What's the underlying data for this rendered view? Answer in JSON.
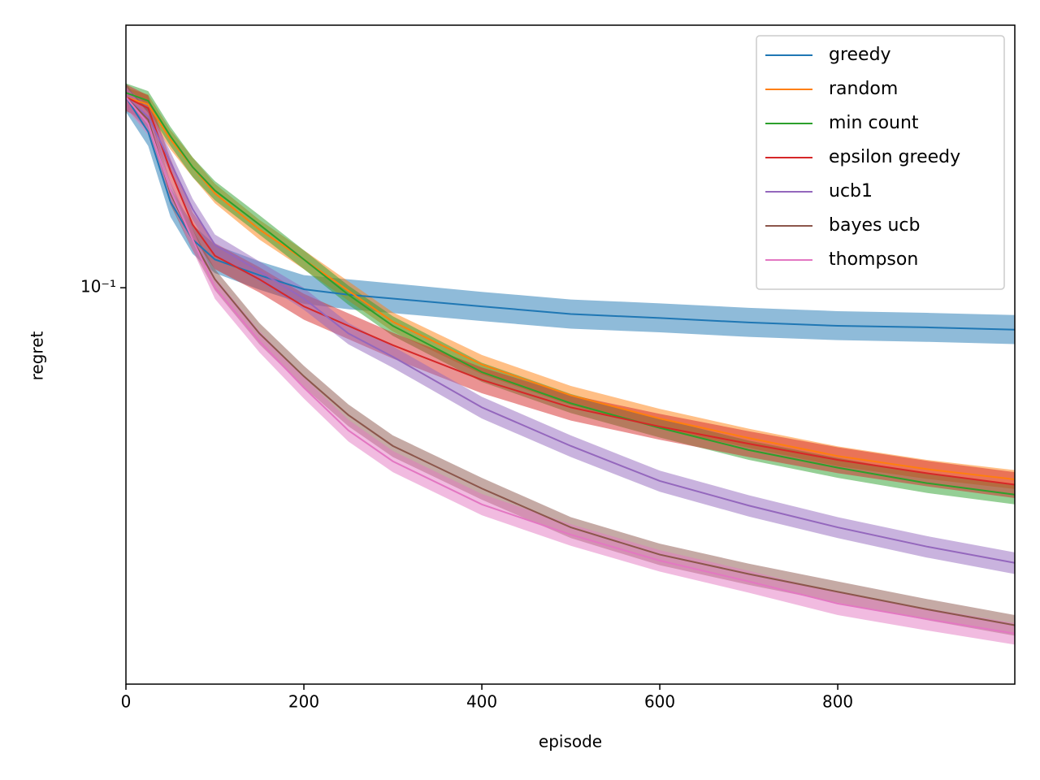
{
  "chart_data": {
    "type": "line",
    "xlabel": "episode",
    "ylabel": "regret",
    "log_y": true,
    "legend": "upper right",
    "xlim": [
      0,
      999
    ],
    "xticks": [
      0,
      200,
      400,
      600,
      800
    ],
    "ylim": [
      0.0159,
      0.338
    ],
    "yticks": [
      {
        "value": 0.1,
        "label": "10⁻¹"
      }
    ],
    "x": [
      0,
      25,
      50,
      75,
      100,
      150,
      200,
      250,
      300,
      400,
      500,
      600,
      700,
      800,
      900,
      999
    ],
    "series": [
      {
        "name": "greedy",
        "color": "#1f77b4",
        "values": [
          0.242,
          0.206,
          0.149,
          0.125,
          0.114,
          0.106,
          0.0993,
          0.0968,
          0.0951,
          0.0917,
          0.0885,
          0.0869,
          0.0851,
          0.0838,
          0.0832,
          0.0823
        ],
        "lower": [
          0.226,
          0.193,
          0.139,
          0.117,
          0.107,
          0.0991,
          0.0928,
          0.0905,
          0.0889,
          0.0857,
          0.0827,
          0.0813,
          0.0796,
          0.0784,
          0.0778,
          0.077
        ],
        "upper": [
          0.259,
          0.22,
          0.159,
          0.134,
          0.122,
          0.113,
          0.106,
          0.104,
          0.102,
          0.0981,
          0.0947,
          0.093,
          0.0911,
          0.0897,
          0.089,
          0.0881
        ]
      },
      {
        "name": "random",
        "color": "#ff7f0e",
        "values": [
          0.242,
          0.234,
          0.199,
          0.175,
          0.155,
          0.131,
          0.114,
          0.0986,
          0.0854,
          0.07,
          0.0607,
          0.0545,
          0.0498,
          0.0458,
          0.0431,
          0.0411
        ],
        "lower": [
          0.231,
          0.223,
          0.19,
          0.167,
          0.148,
          0.125,
          0.109,
          0.0942,
          0.0816,
          0.0669,
          0.058,
          0.052,
          0.0476,
          0.0437,
          0.0412,
          0.0393
        ],
        "upper": [
          0.253,
          0.245,
          0.208,
          0.183,
          0.162,
          0.137,
          0.119,
          0.103,
          0.0892,
          0.0732,
          0.0634,
          0.057,
          0.052,
          0.0479,
          0.045,
          0.0429
        ]
      },
      {
        "name": "min count",
        "color": "#2ca02c",
        "values": [
          0.247,
          0.238,
          0.202,
          0.175,
          0.157,
          0.134,
          0.114,
          0.0968,
          0.0838,
          0.0676,
          0.0585,
          0.0522,
          0.0471,
          0.0434,
          0.0404,
          0.0383
        ],
        "lower": [
          0.236,
          0.227,
          0.193,
          0.167,
          0.15,
          0.128,
          0.109,
          0.0924,
          0.08,
          0.0646,
          0.0559,
          0.0499,
          0.045,
          0.0414,
          0.0386,
          0.0366
        ],
        "upper": [
          0.258,
          0.249,
          0.211,
          0.183,
          0.164,
          0.14,
          0.119,
          0.101,
          0.0876,
          0.0706,
          0.0611,
          0.0545,
          0.0492,
          0.0454,
          0.0422,
          0.04
        ]
      },
      {
        "name": "epsilon greedy",
        "color": "#d62728",
        "values": [
          0.242,
          0.23,
          0.172,
          0.134,
          0.116,
          0.104,
          0.0917,
          0.0838,
          0.0766,
          0.0652,
          0.0574,
          0.0525,
          0.0485,
          0.045,
          0.0423,
          0.0401
        ],
        "lower": [
          0.227,
          0.216,
          0.162,
          0.126,
          0.109,
          0.0978,
          0.0862,
          0.0788,
          0.072,
          0.0613,
          0.054,
          0.0494,
          0.0456,
          0.0423,
          0.0398,
          0.0377
        ],
        "upper": [
          0.257,
          0.244,
          0.182,
          0.142,
          0.123,
          0.11,
          0.0972,
          0.0888,
          0.0812,
          0.0691,
          0.0608,
          0.0557,
          0.0514,
          0.0477,
          0.0448,
          0.0425
        ]
      },
      {
        "name": "ucb1",
        "color": "#9467bd",
        "values": [
          0.242,
          0.221,
          0.179,
          0.144,
          0.122,
          0.108,
          0.0951,
          0.0809,
          0.0726,
          0.0574,
          0.048,
          0.0408,
          0.0364,
          0.0329,
          0.0301,
          0.0279
        ],
        "lower": [
          0.23,
          0.21,
          0.17,
          0.137,
          0.116,
          0.103,
          0.0903,
          0.0769,
          0.069,
          0.0545,
          0.0456,
          0.0388,
          0.0346,
          0.0313,
          0.0286,
          0.0265
        ],
        "upper": [
          0.254,
          0.232,
          0.188,
          0.151,
          0.128,
          0.113,
          0.0999,
          0.0849,
          0.0762,
          0.0603,
          0.0504,
          0.0428,
          0.0382,
          0.0345,
          0.0316,
          0.0293
        ]
      },
      {
        "name": "bayes ucb",
        "color": "#8c564b",
        "values": [
          0.242,
          0.218,
          0.155,
          0.125,
          0.104,
          0.0809,
          0.0663,
          0.0554,
          0.048,
          0.0394,
          0.0329,
          0.029,
          0.0265,
          0.0244,
          0.0225,
          0.0209
        ],
        "lower": [
          0.23,
          0.207,
          0.147,
          0.119,
          0.0988,
          0.0769,
          0.063,
          0.0526,
          0.0456,
          0.0374,
          0.0313,
          0.0276,
          0.0252,
          0.0232,
          0.0214,
          0.0199
        ],
        "upper": [
          0.254,
          0.229,
          0.163,
          0.131,
          0.109,
          0.0849,
          0.0696,
          0.0582,
          0.0504,
          0.0414,
          0.0345,
          0.0305,
          0.0278,
          0.0256,
          0.0236,
          0.0219
        ]
      },
      {
        "name": "thompson",
        "color": "#e377c2",
        "values": [
          0.242,
          0.214,
          0.157,
          0.125,
          0.1,
          0.078,
          0.0629,
          0.0516,
          0.0447,
          0.0366,
          0.0318,
          0.0282,
          0.0256,
          0.0231,
          0.0215,
          0.0201
        ],
        "lower": [
          0.23,
          0.203,
          0.149,
          0.119,
          0.095,
          0.0741,
          0.0598,
          0.049,
          0.0425,
          0.0348,
          0.0302,
          0.0268,
          0.0243,
          0.0219,
          0.0204,
          0.0191
        ],
        "upper": [
          0.254,
          0.225,
          0.165,
          0.131,
          0.105,
          0.0819,
          0.066,
          0.0542,
          0.0469,
          0.0384,
          0.0334,
          0.0296,
          0.0269,
          0.0243,
          0.0226,
          0.0211
        ]
      }
    ]
  }
}
